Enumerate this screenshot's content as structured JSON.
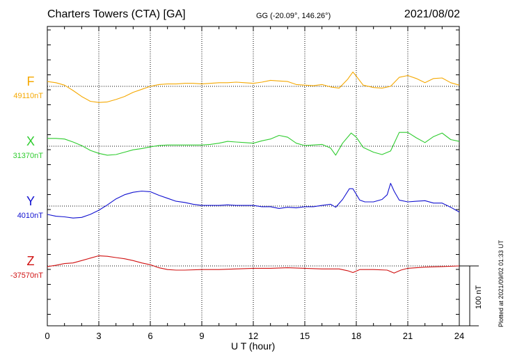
{
  "header": {
    "station": "Charters Towers (CTA)  [GA]",
    "coords": "GG (-20.09°, 146.26°)",
    "date": "2021/08/02"
  },
  "footer": {
    "plotted": "Plotted at 2021/09/02 01:33 UT",
    "scale_label": "100 nT"
  },
  "chart_data": {
    "type": "line",
    "xlabel": "U T (hour)",
    "xlim": [
      0,
      24
    ],
    "xticks": [
      "0",
      "3",
      "6",
      "9",
      "12",
      "15",
      "18",
      "21",
      "24"
    ],
    "scale_bar_nT": 100,
    "grid": true,
    "series": [
      {
        "name": "F",
        "baseline_label": "49110nT",
        "color": "#f5a800",
        "baseline": 49110,
        "points": [
          [
            0,
            49118
          ],
          [
            0.5,
            49116
          ],
          [
            1,
            49112
          ],
          [
            1.5,
            49103
          ],
          [
            2,
            49093
          ],
          [
            2.5,
            49085
          ],
          [
            3,
            49083
          ],
          [
            3.5,
            49084
          ],
          [
            4,
            49088
          ],
          [
            4.5,
            49093
          ],
          [
            5,
            49100
          ],
          [
            5.5,
            49105
          ],
          [
            6,
            49110
          ],
          [
            6.5,
            49113
          ],
          [
            7,
            49114
          ],
          [
            7.5,
            49114
          ],
          [
            8,
            49115
          ],
          [
            8.5,
            49115
          ],
          [
            9,
            49114
          ],
          [
            9.5,
            49115
          ],
          [
            10,
            49116
          ],
          [
            10.5,
            49116
          ],
          [
            11,
            49117
          ],
          [
            11.5,
            49116
          ],
          [
            12,
            49115
          ],
          [
            12.5,
            49117
          ],
          [
            13,
            49120
          ],
          [
            13.5,
            49119
          ],
          [
            14,
            49118
          ],
          [
            14.5,
            49113
          ],
          [
            15,
            49112
          ],
          [
            15.5,
            49111
          ],
          [
            16,
            49113
          ],
          [
            16.5,
            49109
          ],
          [
            17,
            49107
          ],
          [
            17.5,
            49122
          ],
          [
            17.8,
            49134
          ],
          [
            18,
            49127
          ],
          [
            18.4,
            49112
          ],
          [
            19,
            49108
          ],
          [
            19.5,
            49107
          ],
          [
            20,
            49110
          ],
          [
            20.5,
            49125
          ],
          [
            21,
            49128
          ],
          [
            21.5,
            49123
          ],
          [
            22,
            49116
          ],
          [
            22.5,
            49123
          ],
          [
            23,
            49124
          ],
          [
            23.5,
            49116
          ],
          [
            24,
            49112
          ]
        ]
      },
      {
        "name": "X",
        "baseline_label": "31370nT",
        "color": "#2ecc2e",
        "baseline": 31370,
        "points": [
          [
            0,
            31383
          ],
          [
            0.5,
            31383
          ],
          [
            1,
            31382
          ],
          [
            1.5,
            31377
          ],
          [
            2,
            31371
          ],
          [
            2.5,
            31363
          ],
          [
            3,
            31358
          ],
          [
            3.5,
            31355
          ],
          [
            4,
            31356
          ],
          [
            4.5,
            31360
          ],
          [
            5,
            31364
          ],
          [
            5.5,
            31366
          ],
          [
            6,
            31369
          ],
          [
            6.5,
            31371
          ],
          [
            7,
            31372
          ],
          [
            7.5,
            31372
          ],
          [
            8,
            31372
          ],
          [
            8.5,
            31372
          ],
          [
            9,
            31372
          ],
          [
            9.5,
            31373
          ],
          [
            10,
            31375
          ],
          [
            10.5,
            31378
          ],
          [
            11,
            31377
          ],
          [
            11.5,
            31376
          ],
          [
            12,
            31375
          ],
          [
            12.5,
            31379
          ],
          [
            13,
            31382
          ],
          [
            13.5,
            31388
          ],
          [
            14,
            31385
          ],
          [
            14.5,
            31375
          ],
          [
            15,
            31371
          ],
          [
            15.5,
            31372
          ],
          [
            16,
            31373
          ],
          [
            16.5,
            31367
          ],
          [
            16.8,
            31355
          ],
          [
            17.2,
            31375
          ],
          [
            17.7,
            31392
          ],
          [
            18,
            31385
          ],
          [
            18.4,
            31368
          ],
          [
            19,
            31360
          ],
          [
            19.5,
            31356
          ],
          [
            20,
            31362
          ],
          [
            20.5,
            31393
          ],
          [
            21,
            31393
          ],
          [
            21.5,
            31384
          ],
          [
            22,
            31376
          ],
          [
            22.5,
            31386
          ],
          [
            23,
            31392
          ],
          [
            23.5,
            31381
          ],
          [
            24,
            31378
          ]
        ]
      },
      {
        "name": "Y",
        "baseline_label": "4010nT",
        "color": "#1010d0",
        "baseline": 4010,
        "points": [
          [
            0,
            3996
          ],
          [
            0.5,
            3993
          ],
          [
            1,
            3992
          ],
          [
            1.5,
            3990
          ],
          [
            2,
            3991
          ],
          [
            2.5,
            3996
          ],
          [
            3,
            4003
          ],
          [
            3.5,
            4012
          ],
          [
            4,
            4022
          ],
          [
            4.5,
            4029
          ],
          [
            5,
            4033
          ],
          [
            5.5,
            4035
          ],
          [
            6,
            4034
          ],
          [
            6.5,
            4028
          ],
          [
            7,
            4023
          ],
          [
            7.5,
            4018
          ],
          [
            8,
            4016
          ],
          [
            8.5,
            4013
          ],
          [
            9,
            4011
          ],
          [
            9.5,
            4011
          ],
          [
            10,
            4011
          ],
          [
            10.5,
            4012
          ],
          [
            11,
            4011
          ],
          [
            11.5,
            4011
          ],
          [
            12,
            4011
          ],
          [
            12.5,
            4009
          ],
          [
            13,
            4009
          ],
          [
            13.5,
            4006
          ],
          [
            14,
            4008
          ],
          [
            14.5,
            4007
          ],
          [
            15,
            4009
          ],
          [
            15.5,
            4009
          ],
          [
            16,
            4011
          ],
          [
            16.5,
            4013
          ],
          [
            16.8,
            4008
          ],
          [
            17.2,
            4021
          ],
          [
            17.6,
            4039
          ],
          [
            17.8,
            4039
          ],
          [
            18.2,
            4020
          ],
          [
            18.5,
            4017
          ],
          [
            19,
            4017
          ],
          [
            19.5,
            4021
          ],
          [
            19.8,
            4029
          ],
          [
            20,
            4048
          ],
          [
            20.2,
            4035
          ],
          [
            20.5,
            4020
          ],
          [
            21,
            4017
          ],
          [
            21.5,
            4018
          ],
          [
            22,
            4019
          ],
          [
            22.5,
            4015
          ],
          [
            23,
            4015
          ],
          [
            23.5,
            4008
          ],
          [
            24,
            4000
          ]
        ]
      },
      {
        "name": "Z",
        "baseline_label": "-37570nT",
        "color": "#d01010",
        "baseline": -37570,
        "points": [
          [
            0,
            -37571
          ],
          [
            0.5,
            -37569
          ],
          [
            1,
            -37566
          ],
          [
            1.5,
            -37565
          ],
          [
            2,
            -37561
          ],
          [
            2.5,
            -37557
          ],
          [
            3,
            -37553
          ],
          [
            3.5,
            -37554
          ],
          [
            4,
            -37556
          ],
          [
            4.5,
            -37558
          ],
          [
            5,
            -37561
          ],
          [
            5.5,
            -37565
          ],
          [
            6,
            -37568
          ],
          [
            6.5,
            -37573
          ],
          [
            7,
            -37576
          ],
          [
            7.5,
            -37577
          ],
          [
            8,
            -37577
          ],
          [
            9,
            -37576
          ],
          [
            10,
            -37576
          ],
          [
            11,
            -37575
          ],
          [
            12,
            -37574
          ],
          [
            13,
            -37574
          ],
          [
            14,
            -37573
          ],
          [
            15,
            -37574
          ],
          [
            16,
            -37575
          ],
          [
            17,
            -37575
          ],
          [
            17.5,
            -37578
          ],
          [
            17.8,
            -37581
          ],
          [
            18.2,
            -37576
          ],
          [
            19,
            -37576
          ],
          [
            19.8,
            -37577
          ],
          [
            20.2,
            -37582
          ],
          [
            20.6,
            -37577
          ],
          [
            21,
            -37574
          ],
          [
            22,
            -37572
          ],
          [
            23,
            -37571
          ],
          [
            24,
            -37570
          ]
        ]
      }
    ]
  }
}
